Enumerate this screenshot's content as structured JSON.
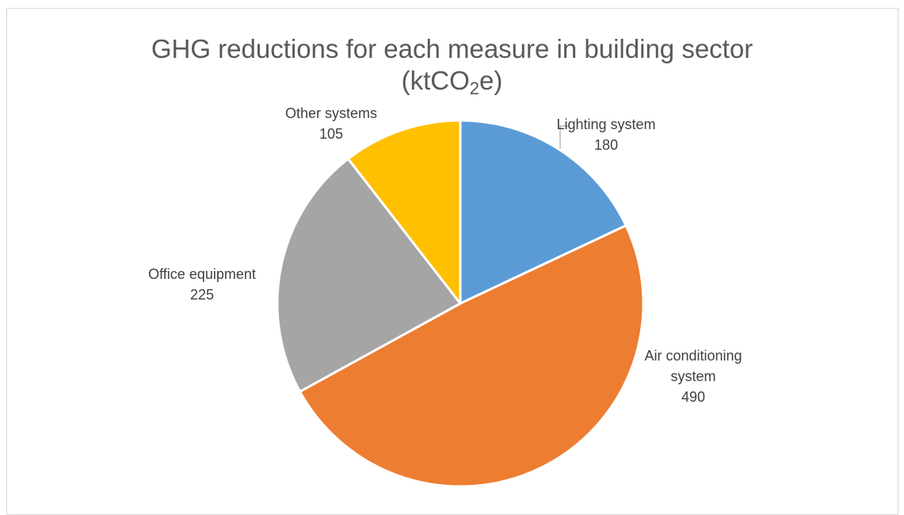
{
  "chart_data": {
    "type": "pie",
    "title_main": "GHG reductions for each measure in building sector",
    "title_unit_pre": "(ktCO",
    "title_unit_sub": "2",
    "title_unit_post": "e)",
    "categories": [
      "Lighting system",
      "Air conditioning system",
      "Office equipment",
      "Other systems"
    ],
    "values": [
      180,
      490,
      225,
      105
    ],
    "colors": [
      "#5b9bd5",
      "#ed7d31",
      "#a5a5a5",
      "#ffc000"
    ],
    "label_lines": [
      [
        "Lighting system",
        "180"
      ],
      [
        "Air conditioning",
        "system",
        "490"
      ],
      [
        "Office equipment",
        "225"
      ],
      [
        "Other systems",
        "105"
      ]
    ],
    "legend": "none",
    "start_angle_deg": 0,
    "direction": "clockwise"
  }
}
